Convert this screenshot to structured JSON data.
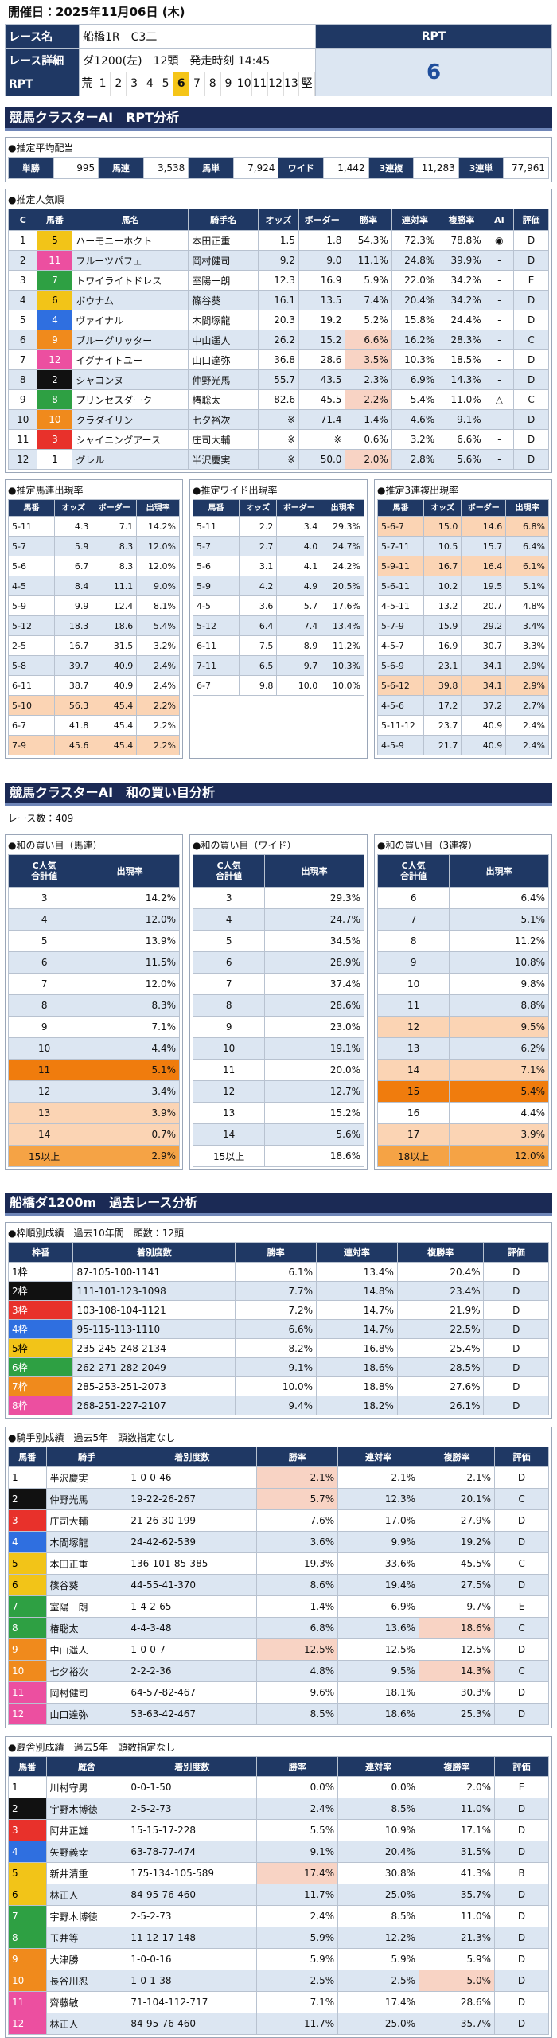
{
  "header": {
    "date": "開催日：2025年11月06日 (木)"
  },
  "race": {
    "name_label": "レース名",
    "name": "船橋1R　C3二",
    "detail_label": "レース詳細",
    "detail": "ダ1200(左)　12頭　発走時刻 14:45",
    "rpt_head": "RPT",
    "rpt_value": "6",
    "scale_label": "RPT",
    "scale": [
      "荒",
      "1",
      "2",
      "3",
      "4",
      "5",
      "6",
      "7",
      "8",
      "9",
      "10",
      "11",
      "12",
      "13",
      "堅"
    ]
  },
  "rpt_analysis": {
    "title": "競馬クラスターAI　RPT分析",
    "payout": {
      "title": "●推定平均配当",
      "labels": [
        "単勝",
        "馬連",
        "馬単",
        "ワイド",
        "3連複",
        "3連単"
      ],
      "values": [
        "995",
        "3,538",
        "7,924",
        "1,442",
        "11,283",
        "77,961"
      ]
    },
    "popularity": {
      "title": "●推定人気順",
      "headers": [
        "C",
        "馬番",
        "馬名",
        "騎手名",
        "オッズ",
        "ボーダー",
        "勝率",
        "連対率",
        "複勝率",
        "AI",
        "評価"
      ],
      "rows": [
        [
          "1",
          "5",
          "ハーモニーホクト",
          "本田正重",
          "1.5",
          "1.8",
          "54.3%",
          "72.3%",
          "78.8%",
          "◉",
          "D"
        ],
        [
          "2",
          "11",
          "フルーツパフェ",
          "岡村健司",
          "9.2",
          "9.0",
          "11.1%",
          "24.8%",
          "39.9%",
          "-",
          "D"
        ],
        [
          "3",
          "7",
          "トワイライトドレス",
          "室陽一朗",
          "12.3",
          "16.9",
          "5.9%",
          "22.0%",
          "34.2%",
          "-",
          "E"
        ],
        [
          "4",
          "6",
          "ボウナム",
          "篠谷葵",
          "16.1",
          "13.5",
          "7.4%",
          "20.4%",
          "34.2%",
          "-",
          "D"
        ],
        [
          "5",
          "4",
          "ヴァイナル",
          "木間塚龍",
          "20.3",
          "19.2",
          "5.2%",
          "15.8%",
          "24.4%",
          "-",
          "D"
        ],
        [
          "6",
          "9",
          "ブルーグリッター",
          "中山遥人",
          "26.2",
          "15.2",
          "6.6%",
          "16.2%",
          "28.3%",
          "-",
          "C"
        ],
        [
          "7",
          "12",
          "イグナイトユー",
          "山口達弥",
          "36.8",
          "28.6",
          "3.5%",
          "10.3%",
          "18.5%",
          "-",
          "D"
        ],
        [
          "8",
          "2",
          "シャコンヌ",
          "仲野光馬",
          "55.7",
          "43.5",
          "2.3%",
          "6.9%",
          "14.3%",
          "-",
          "D"
        ],
        [
          "9",
          "8",
          "プリンセスダーク",
          "椿聡太",
          "82.6",
          "45.5",
          "2.2%",
          "5.4%",
          "11.0%",
          "△",
          "C"
        ],
        [
          "10",
          "10",
          "クラダイリン",
          "七夕裕次",
          "※",
          "71.4",
          "1.4%",
          "4.6%",
          "9.1%",
          "-",
          "D"
        ],
        [
          "11",
          "3",
          "シャイニングアース",
          "庄司大輔",
          "※",
          "※",
          "0.6%",
          "3.2%",
          "6.6%",
          "-",
          "D"
        ],
        [
          "12",
          "1",
          "グレル",
          "半沢慶実",
          "※",
          "50.0",
          "2.0%",
          "2.8%",
          "5.6%",
          "-",
          "D"
        ]
      ]
    },
    "quinella": {
      "title": "●推定馬連出現率",
      "headers": [
        "馬番",
        "オッズ",
        "ボーダー",
        "出現率"
      ],
      "rows": [
        [
          "5-11",
          "4.3",
          "7.1",
          "14.2%"
        ],
        [
          "5-7",
          "5.9",
          "8.3",
          "12.0%"
        ],
        [
          "5-6",
          "6.7",
          "8.3",
          "12.0%"
        ],
        [
          "4-5",
          "8.4",
          "11.1",
          "9.0%"
        ],
        [
          "5-9",
          "9.9",
          "12.4",
          "8.1%"
        ],
        [
          "5-12",
          "18.3",
          "18.6",
          "5.4%"
        ],
        [
          "2-5",
          "16.7",
          "31.5",
          "3.2%"
        ],
        [
          "5-8",
          "39.7",
          "40.9",
          "2.4%"
        ],
        [
          "6-11",
          "38.7",
          "40.9",
          "2.4%"
        ],
        [
          "5-10",
          "56.3",
          "45.4",
          "2.2%"
        ],
        [
          "6-7",
          "41.8",
          "45.4",
          "2.2%"
        ],
        [
          "7-9",
          "45.6",
          "45.4",
          "2.2%"
        ]
      ]
    },
    "wide": {
      "title": "●推定ワイド出現率",
      "headers": [
        "馬番",
        "オッズ",
        "ボーダー",
        "出現率"
      ],
      "rows": [
        [
          "5-11",
          "2.2",
          "3.4",
          "29.3%"
        ],
        [
          "5-7",
          "2.7",
          "4.0",
          "24.7%"
        ],
        [
          "5-6",
          "3.1",
          "4.1",
          "24.2%"
        ],
        [
          "5-9",
          "4.2",
          "4.9",
          "20.5%"
        ],
        [
          "4-5",
          "3.6",
          "5.7",
          "17.6%"
        ],
        [
          "5-12",
          "6.4",
          "7.4",
          "13.4%"
        ],
        [
          "6-11",
          "7.5",
          "8.9",
          "11.2%"
        ],
        [
          "7-11",
          "6.5",
          "9.7",
          "10.3%"
        ],
        [
          "6-7",
          "9.8",
          "10.0",
          "10.0%"
        ]
      ]
    },
    "trio": {
      "title": "●推定3連複出現率",
      "headers": [
        "馬番",
        "オッズ",
        "ボーダー",
        "出現率"
      ],
      "rows": [
        [
          "5-6-7",
          "15.0",
          "14.6",
          "6.8%"
        ],
        [
          "5-7-11",
          "10.5",
          "15.7",
          "6.4%"
        ],
        [
          "5-9-11",
          "16.7",
          "16.4",
          "6.1%"
        ],
        [
          "5-6-11",
          "10.2",
          "19.5",
          "5.1%"
        ],
        [
          "4-5-11",
          "13.2",
          "20.7",
          "4.8%"
        ],
        [
          "5-7-9",
          "15.9",
          "29.2",
          "3.4%"
        ],
        [
          "4-5-7",
          "16.9",
          "30.7",
          "3.3%"
        ],
        [
          "5-6-9",
          "23.1",
          "34.1",
          "2.9%"
        ],
        [
          "5-6-12",
          "39.8",
          "34.1",
          "2.9%"
        ],
        [
          "4-5-6",
          "17.2",
          "37.2",
          "2.7%"
        ],
        [
          "5-11-12",
          "23.7",
          "40.9",
          "2.4%"
        ],
        [
          "4-5-9",
          "21.7",
          "40.9",
          "2.4%"
        ]
      ]
    }
  },
  "sum_analysis": {
    "title": "競馬クラスターAI　和の買い目分析",
    "race_count": "レース数：409",
    "quinella": {
      "title": "●和の買い目（馬連）",
      "headers": [
        "C人気\n合計値",
        "出現率"
      ],
      "rows": [
        [
          "3",
          "14.2%"
        ],
        [
          "4",
          "12.0%"
        ],
        [
          "5",
          "13.9%"
        ],
        [
          "6",
          "11.5%"
        ],
        [
          "7",
          "12.0%"
        ],
        [
          "8",
          "8.3%"
        ],
        [
          "9",
          "7.1%"
        ],
        [
          "10",
          "4.4%"
        ],
        [
          "11",
          "5.1%"
        ],
        [
          "12",
          "3.4%"
        ],
        [
          "13",
          "3.9%"
        ],
        [
          "14",
          "0.7%"
        ],
        [
          "15以上",
          "2.9%"
        ]
      ]
    },
    "wide": {
      "title": "●和の買い目（ワイド）",
      "headers": [
        "C人気\n合計値",
        "出現率"
      ],
      "rows": [
        [
          "3",
          "29.3%"
        ],
        [
          "4",
          "24.7%"
        ],
        [
          "5",
          "34.5%"
        ],
        [
          "6",
          "28.9%"
        ],
        [
          "7",
          "37.4%"
        ],
        [
          "8",
          "28.6%"
        ],
        [
          "9",
          "23.0%"
        ],
        [
          "10",
          "19.1%"
        ],
        [
          "11",
          "20.0%"
        ],
        [
          "12",
          "12.7%"
        ],
        [
          "13",
          "15.2%"
        ],
        [
          "14",
          "5.6%"
        ],
        [
          "15以上",
          "18.6%"
        ]
      ]
    },
    "trio": {
      "title": "●和の買い目（3連複）",
      "headers": [
        "C人気\n合計値",
        "出現率"
      ],
      "rows": [
        [
          "6",
          "6.4%"
        ],
        [
          "7",
          "5.1%"
        ],
        [
          "8",
          "11.2%"
        ],
        [
          "9",
          "10.8%"
        ],
        [
          "10",
          "9.8%"
        ],
        [
          "11",
          "8.8%"
        ],
        [
          "12",
          "9.5%"
        ],
        [
          "13",
          "6.2%"
        ],
        [
          "14",
          "7.1%"
        ],
        [
          "15",
          "5.4%"
        ],
        [
          "16",
          "4.4%"
        ],
        [
          "17",
          "3.9%"
        ],
        [
          "18以上",
          "12.0%"
        ]
      ]
    }
  },
  "past_analysis": {
    "title": "船橋ダ1200m　過去レース分析",
    "frame": {
      "title": "●枠順別成績　過去10年間　頭数：12頭",
      "headers": [
        "枠番",
        "着別度数",
        "勝率",
        "連対率",
        "複勝率",
        "評価"
      ],
      "rows": [
        [
          "1枠",
          "87-105-100-1141",
          "6.1%",
          "13.4%",
          "20.4%",
          "D"
        ],
        [
          "2枠",
          "111-101-123-1098",
          "7.7%",
          "14.8%",
          "23.4%",
          "D"
        ],
        [
          "3枠",
          "103-108-104-1121",
          "7.2%",
          "14.7%",
          "21.9%",
          "D"
        ],
        [
          "4枠",
          "95-115-113-1110",
          "6.6%",
          "14.7%",
          "22.5%",
          "D"
        ],
        [
          "5枠",
          "235-245-248-2134",
          "8.2%",
          "16.8%",
          "25.4%",
          "D"
        ],
        [
          "6枠",
          "262-271-282-2049",
          "9.1%",
          "18.6%",
          "28.5%",
          "D"
        ],
        [
          "7枠",
          "285-253-251-2073",
          "10.0%",
          "18.8%",
          "27.6%",
          "D"
        ],
        [
          "8枠",
          "268-251-227-2107",
          "9.4%",
          "18.2%",
          "26.1%",
          "D"
        ]
      ]
    },
    "jockey": {
      "title": "●騎手別成績　過去5年　頭数指定なし",
      "headers": [
        "馬番",
        "騎手",
        "着別度数",
        "勝率",
        "連対率",
        "複勝率",
        "評価"
      ],
      "rows": [
        [
          "1",
          "半沢慶実",
          "1-0-0-46",
          "2.1%",
          "2.1%",
          "2.1%",
          "D"
        ],
        [
          "2",
          "仲野光馬",
          "19-22-26-267",
          "5.7%",
          "12.3%",
          "20.1%",
          "C"
        ],
        [
          "3",
          "庄司大輔",
          "21-26-30-199",
          "7.6%",
          "17.0%",
          "27.9%",
          "D"
        ],
        [
          "4",
          "木間塚龍",
          "24-42-62-539",
          "3.6%",
          "9.9%",
          "19.2%",
          "D"
        ],
        [
          "5",
          "本田正重",
          "136-101-85-385",
          "19.3%",
          "33.6%",
          "45.5%",
          "C"
        ],
        [
          "6",
          "篠谷葵",
          "44-55-41-370",
          "8.6%",
          "19.4%",
          "27.5%",
          "D"
        ],
        [
          "7",
          "室陽一朗",
          "1-4-2-65",
          "1.4%",
          "6.9%",
          "9.7%",
          "E"
        ],
        [
          "8",
          "椿聡太",
          "4-4-3-48",
          "6.8%",
          "13.6%",
          "18.6%",
          "C"
        ],
        [
          "9",
          "中山遥人",
          "1-0-0-7",
          "12.5%",
          "12.5%",
          "12.5%",
          "D"
        ],
        [
          "10",
          "七夕裕次",
          "2-2-2-36",
          "4.8%",
          "9.5%",
          "14.3%",
          "C"
        ],
        [
          "11",
          "岡村健司",
          "64-57-82-467",
          "9.6%",
          "18.1%",
          "30.3%",
          "D"
        ],
        [
          "12",
          "山口達弥",
          "53-63-42-467",
          "8.5%",
          "18.6%",
          "25.3%",
          "D"
        ]
      ]
    },
    "stable": {
      "title": "●厩舎別成績　過去5年　頭数指定なし",
      "headers": [
        "馬番",
        "厩舎",
        "着別度数",
        "勝率",
        "連対率",
        "複勝率",
        "評価"
      ],
      "rows": [
        [
          "1",
          "川村守男",
          "0-0-1-50",
          "0.0%",
          "0.0%",
          "2.0%",
          "E"
        ],
        [
          "2",
          "宇野木博徳",
          "2-5-2-73",
          "2.4%",
          "8.5%",
          "11.0%",
          "D"
        ],
        [
          "3",
          "阿井正雄",
          "15-15-17-228",
          "5.5%",
          "10.9%",
          "17.1%",
          "D"
        ],
        [
          "4",
          "矢野義幸",
          "63-78-77-474",
          "9.1%",
          "20.4%",
          "31.5%",
          "D"
        ],
        [
          "5",
          "新井清重",
          "175-134-105-589",
          "17.4%",
          "30.8%",
          "41.3%",
          "B"
        ],
        [
          "6",
          "林正人",
          "84-95-76-460",
          "11.7%",
          "25.0%",
          "35.7%",
          "D"
        ],
        [
          "7",
          "宇野木博徳",
          "2-5-2-73",
          "2.4%",
          "8.5%",
          "11.0%",
          "D"
        ],
        [
          "8",
          "玉井等",
          "11-12-17-148",
          "5.9%",
          "12.2%",
          "21.3%",
          "D"
        ],
        [
          "9",
          "大津勝",
          "1-0-0-16",
          "5.9%",
          "5.9%",
          "5.9%",
          "D"
        ],
        [
          "10",
          "長谷川忍",
          "1-0-1-38",
          "2.5%",
          "2.5%",
          "5.0%",
          "D"
        ],
        [
          "11",
          "齊藤敏",
          "71-104-112-717",
          "7.1%",
          "17.4%",
          "28.6%",
          "D"
        ],
        [
          "12",
          "林正人",
          "84-95-76-460",
          "11.7%",
          "25.0%",
          "35.7%",
          "D"
        ]
      ]
    }
  }
}
